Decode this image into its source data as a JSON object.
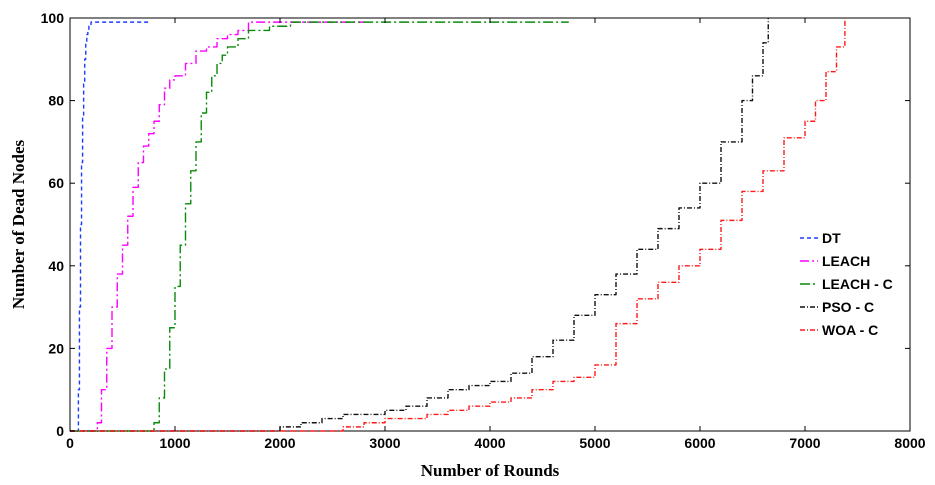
{
  "chart_data": {
    "type": "line",
    "title": "",
    "xlabel": "Number of Rounds",
    "ylabel": "Number of Dead Nodes",
    "xlim": [
      0,
      8000
    ],
    "ylim": [
      0,
      100
    ],
    "xticks": [
      0,
      1000,
      2000,
      3000,
      4000,
      5000,
      6000,
      7000,
      8000
    ],
    "yticks": [
      0,
      20,
      40,
      60,
      80,
      100
    ],
    "grid": false,
    "legend_position": "right",
    "series": [
      {
        "name": "DT",
        "color": "#1a3cff",
        "dash": "4,3",
        "x": [
          0,
          70,
          80,
          90,
          100,
          110,
          120,
          130,
          140,
          150,
          160,
          170,
          180,
          200,
          220,
          300,
          500,
          750
        ],
        "y": [
          0,
          0,
          10,
          30,
          50,
          65,
          76,
          84,
          90,
          94,
          96,
          97,
          98,
          99,
          99,
          99,
          99,
          99
        ]
      },
      {
        "name": "LEACH",
        "color": "#ff00ff",
        "dash": "9,3,2,3",
        "x": [
          0,
          240,
          260,
          300,
          350,
          400,
          450,
          500,
          550,
          600,
          650,
          700,
          750,
          800,
          850,
          900,
          950,
          1000,
          1100,
          1200,
          1300,
          1400,
          1500,
          1600,
          1700,
          1800,
          2000,
          2300,
          2800
        ],
        "y": [
          0,
          0,
          2,
          10,
          20,
          30,
          38,
          45,
          52,
          59,
          65,
          69,
          72,
          75,
          79,
          83,
          85,
          86,
          89,
          92,
          93,
          95,
          96,
          97,
          99,
          99,
          99,
          99,
          99
        ]
      },
      {
        "name": "LEACH - C",
        "color": "#0a8a0a",
        "dash": "10,3,2,3",
        "x": [
          0,
          750,
          800,
          850,
          900,
          950,
          1000,
          1050,
          1100,
          1150,
          1200,
          1250,
          1300,
          1350,
          1400,
          1450,
          1500,
          1600,
          1700,
          1800,
          1900,
          2000,
          2100,
          2200,
          3000,
          4000,
          4750
        ],
        "y": [
          0,
          0,
          2,
          8,
          15,
          25,
          35,
          45,
          55,
          63,
          70,
          77,
          82,
          86,
          89,
          91,
          93,
          95,
          97,
          97,
          98,
          98,
          99,
          99,
          99,
          99,
          99
        ]
      },
      {
        "name": "PSO - C",
        "color": "#111111",
        "dash": "5,2,1,2",
        "x": [
          0,
          1950,
          2000,
          2200,
          2400,
          2600,
          2800,
          3000,
          3200,
          3400,
          3600,
          3800,
          4000,
          4200,
          4400,
          4600,
          4800,
          5000,
          5200,
          5400,
          5600,
          5800,
          6000,
          6200,
          6400,
          6500,
          6600,
          6650
        ],
        "y": [
          0,
          0,
          1,
          2,
          3,
          4,
          4,
          5,
          6,
          8,
          10,
          11,
          12,
          14,
          18,
          22,
          28,
          33,
          38,
          44,
          49,
          54,
          60,
          70,
          80,
          86,
          94,
          100
        ]
      },
      {
        "name": "WOA - C",
        "color": "#ff1a1a",
        "dash": "5,2,1,2",
        "x": [
          0,
          2500,
          2600,
          2800,
          3000,
          3200,
          3400,
          3600,
          3800,
          4000,
          4200,
          4400,
          4600,
          4800,
          5000,
          5200,
          5400,
          5600,
          5800,
          6000,
          6200,
          6400,
          6600,
          6800,
          7000,
          7100,
          7200,
          7300,
          7380
        ],
        "y": [
          0,
          0,
          1,
          2,
          3,
          3,
          4,
          5,
          6,
          7,
          8,
          10,
          12,
          13,
          16,
          26,
          32,
          36,
          40,
          44,
          51,
          58,
          63,
          71,
          75,
          80,
          87,
          93,
          100
        ]
      }
    ]
  }
}
